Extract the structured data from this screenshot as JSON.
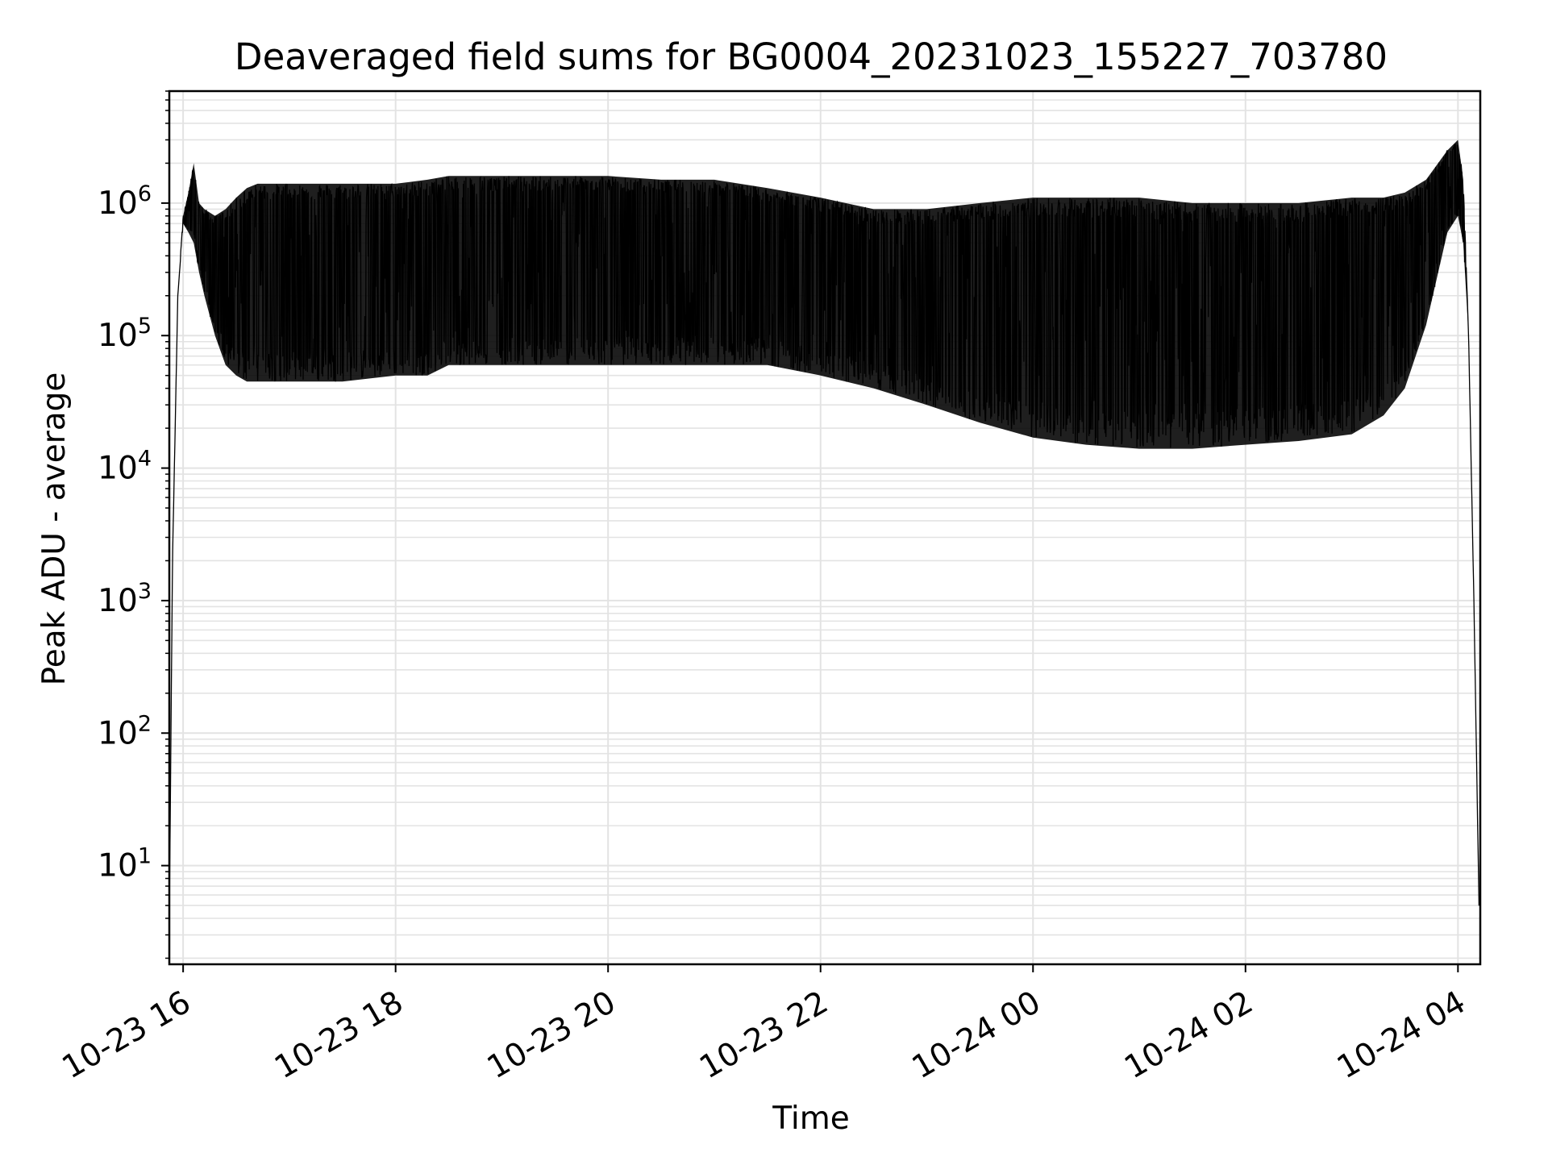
{
  "chart_data": {
    "type": "line",
    "title": "Deaveraged field sums for BG0004_20231023_155227_703780",
    "xlabel": "Time",
    "ylabel": "Peak ADU - average",
    "yscale": "log",
    "ylim": [
      1.8,
      7000000
    ],
    "xlim": [
      "10-23 15:52",
      "10-24 04:13"
    ],
    "grid": true,
    "legend": "none",
    "line_color": "#000000",
    "grid_color": "#e3e3e3",
    "x_ticks": [
      "10-23 16",
      "10-23 18",
      "10-23 20",
      "10-23 22",
      "10-24 00",
      "10-24 02",
      "10-24 04"
    ],
    "y_ticks": [
      {
        "base": "10",
        "exp": "1"
      },
      {
        "base": "10",
        "exp": "2"
      },
      {
        "base": "10",
        "exp": "3"
      },
      {
        "base": "10",
        "exp": "4"
      },
      {
        "base": "10",
        "exp": "5"
      },
      {
        "base": "10",
        "exp": "6"
      }
    ],
    "series": [
      {
        "description": "Approximate envelope of a dense oscillating signal sampled over the night",
        "time_hours": [
          15.87,
          15.9,
          15.95,
          16.0,
          16.05,
          16.1,
          16.15,
          16.2,
          16.3,
          16.4,
          16.5,
          16.6,
          16.7,
          16.8,
          17.0,
          17.5,
          18.0,
          18.3,
          18.5,
          19.0,
          19.5,
          20.0,
          20.5,
          21.0,
          21.5,
          22.0,
          22.5,
          23.0,
          23.5,
          24.0,
          24.5,
          25.0,
          25.5,
          26.0,
          26.5,
          27.0,
          27.3,
          27.5,
          27.7,
          27.9,
          28.0,
          28.05,
          28.1,
          28.15,
          28.2
        ],
        "upper": [
          4,
          2000,
          200000,
          800000,
          1200000,
          2000000,
          1000000,
          900000,
          800000,
          900000,
          1100000,
          1300000,
          1400000,
          1400000,
          1400000,
          1400000,
          1400000,
          1500000,
          1600000,
          1600000,
          1600000,
          1600000,
          1500000,
          1500000,
          1300000,
          1100000,
          900000,
          900000,
          1000000,
          1100000,
          1100000,
          1100000,
          1000000,
          1000000,
          1000000,
          1100000,
          1100000,
          1200000,
          1500000,
          2500000,
          3000000,
          1500000,
          100000,
          1000,
          4
        ],
        "lower": [
          4,
          2000,
          200000,
          700000,
          600000,
          500000,
          300000,
          200000,
          100000,
          60000,
          50000,
          45000,
          45000,
          45000,
          45000,
          45000,
          50000,
          50000,
          60000,
          60000,
          60000,
          60000,
          60000,
          60000,
          60000,
          50000,
          40000,
          30000,
          22000,
          17000,
          15000,
          14000,
          14000,
          15000,
          16000,
          18000,
          25000,
          40000,
          120000,
          600000,
          800000,
          500000,
          100000,
          1000,
          4
        ]
      }
    ]
  }
}
